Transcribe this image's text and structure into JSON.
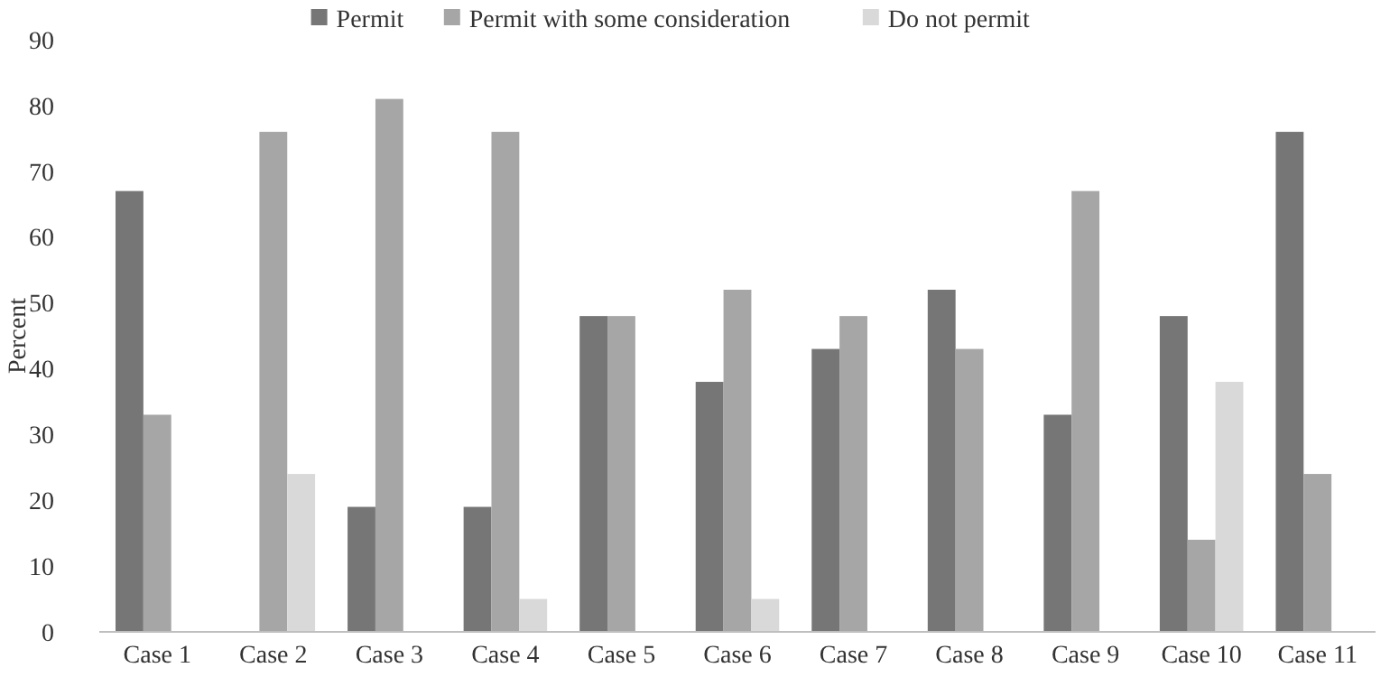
{
  "chart_data": {
    "type": "bar",
    "ylabel": "Percent",
    "categories": [
      "Case 1",
      "Case 2",
      "Case 3",
      "Case 4",
      "Case 5",
      "Case 6",
      "Case 7",
      "Case 8",
      "Case 9",
      "Case 10",
      "Case 11"
    ],
    "series": [
      {
        "name": "Permit",
        "color": "#767676",
        "values": [
          67,
          0,
          19,
          19,
          48,
          38,
          43,
          52,
          33,
          48,
          76
        ]
      },
      {
        "name": "Permit with some consideration",
        "color": "#a6a6a6",
        "values": [
          33,
          76,
          81,
          76,
          48,
          52,
          48,
          43,
          67,
          14,
          24
        ]
      },
      {
        "name": "Do not permit",
        "color": "#d9d9d9",
        "values": [
          0,
          24,
          0,
          5,
          0,
          5,
          0,
          0,
          0,
          38,
          0
        ]
      }
    ],
    "ylim": [
      0,
      90
    ],
    "yticks": [
      0,
      10,
      20,
      30,
      40,
      50,
      60,
      70,
      80,
      90
    ],
    "grid": false,
    "legend": "top"
  }
}
